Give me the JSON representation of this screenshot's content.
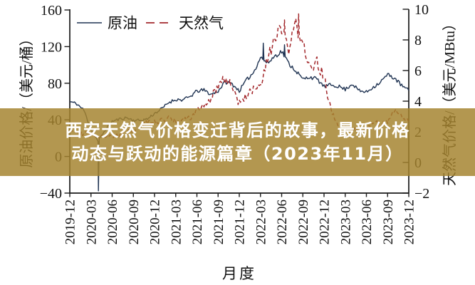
{
  "page": {
    "background_color": "#ffffff"
  },
  "banner": {
    "line1": "西安天然气价格变迁背后的故事，最新价格",
    "line2": "动态与跃动的能源篇章（2023年11月）",
    "background_color": "#b69a55",
    "text_color": "#ffffff"
  },
  "chart_data": {
    "type": "line",
    "title": "",
    "xlabel": "月度",
    "ylabel_left": "原油价格/（美元/桶）",
    "ylabel_right": "天然气价格/（美元/MBtu）",
    "ylim_left": [
      -40,
      160
    ],
    "ylim_right": [
      -2,
      10
    ],
    "y_ticks_left": [
      160,
      120,
      80,
      40,
      0,
      -40
    ],
    "y_ticks_right": [
      10,
      8,
      6,
      4,
      2,
      0,
      -2
    ],
    "x_ticks": [
      "2019-12",
      "2020-03",
      "2020-06",
      "2020-09",
      "2020-12",
      "2021-03",
      "2021-06",
      "2021-09",
      "2021-12",
      "2022-03",
      "2022-06",
      "2022-09",
      "2022-12",
      "2023-03",
      "2023-06",
      "2023-09",
      "2023-12"
    ],
    "grid": false,
    "legend_position": "top-left-inside",
    "months": [
      "2019-12",
      "2020-01",
      "2020-02",
      "2020-03",
      "2020-04",
      "2020-05",
      "2020-06",
      "2020-07",
      "2020-08",
      "2020-09",
      "2020-10",
      "2020-11",
      "2020-12",
      "2021-01",
      "2021-02",
      "2021-03",
      "2021-04",
      "2021-05",
      "2021-06",
      "2021-07",
      "2021-08",
      "2021-09",
      "2021-10",
      "2021-11",
      "2021-12",
      "2022-01",
      "2022-02",
      "2022-03",
      "2022-04",
      "2022-05",
      "2022-06",
      "2022-07",
      "2022-08",
      "2022-09",
      "2022-10",
      "2022-11",
      "2022-12",
      "2023-01",
      "2023-02",
      "2023-03",
      "2023-04",
      "2023-05",
      "2023-06",
      "2023-07",
      "2023-08",
      "2023-09",
      "2023-10",
      "2023-11",
      "2023-12"
    ],
    "series": [
      {
        "name": "原油",
        "axis": "left",
        "unit": "美元/桶",
        "style": "solid",
        "color": "#1f3352",
        "values": [
          59.9,
          57.5,
          50.5,
          29.9,
          16.6,
          28.6,
          38.3,
          40.7,
          42.4,
          39.6,
          39.4,
          41.0,
          47.0,
          52.0,
          59.0,
          62.3,
          61.7,
          65.2,
          71.4,
          72.5,
          67.7,
          71.6,
          81.5,
          79.2,
          71.7,
          83.2,
          91.6,
          108.5,
          101.8,
          109.5,
          114.8,
          101.6,
          93.7,
          84.3,
          87.0,
          84.4,
          76.4,
          78.1,
          76.8,
          73.3,
          79.4,
          71.6,
          70.3,
          76.0,
          81.4,
          89.4,
          85.5,
          77.4,
          71.9
        ]
      },
      {
        "name": "天然气",
        "axis": "right",
        "unit": "美元/MBtu",
        "style": "dashed",
        "color": "#a3282c",
        "values": [
          2.2,
          2.0,
          1.9,
          1.8,
          1.75,
          1.75,
          1.65,
          1.8,
          2.2,
          1.95,
          2.4,
          2.6,
          2.6,
          2.7,
          3.0,
          2.6,
          2.7,
          2.9,
          3.3,
          3.8,
          4.1,
          5.1,
          5.5,
          5.0,
          3.8,
          4.4,
          4.7,
          4.9,
          6.6,
          8.2,
          8.6,
          7.3,
          9.0,
          7.9,
          6.0,
          6.5,
          5.6,
          3.3,
          2.4,
          2.3,
          2.2,
          2.2,
          2.2,
          2.6,
          2.6,
          2.6,
          3.3,
          3.1,
          2.6
        ]
      }
    ],
    "annotations": [
      {
        "series": "原油",
        "month": "2020-04",
        "value": -37.6,
        "type": "low"
      },
      {
        "series": "原油",
        "month": "2022-03",
        "value": 123.7,
        "type": "high"
      },
      {
        "series": "原油",
        "month": "2022-06",
        "value": 122.0,
        "type": "high"
      },
      {
        "series": "天然气",
        "month": "2022-06",
        "value": 9.3,
        "type": "high"
      },
      {
        "series": "天然气",
        "month": "2022-08",
        "value": 9.7,
        "type": "high"
      }
    ],
    "axis_color": "#1a1a1a"
  }
}
